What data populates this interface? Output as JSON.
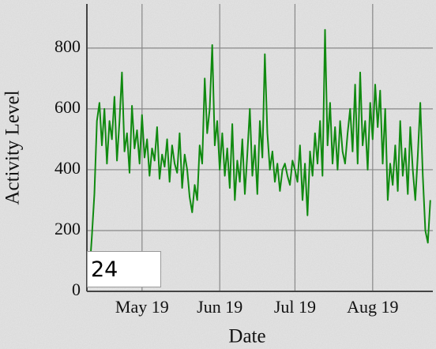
{
  "chart_data": {
    "type": "line",
    "xlabel": "Date",
    "ylabel": "Activity Level",
    "x": [
      100,
      101,
      102,
      103,
      104,
      105,
      106,
      107,
      108,
      109,
      110,
      111,
      112,
      113,
      114,
      115,
      116,
      117,
      118,
      119,
      120,
      121,
      122,
      123,
      124,
      125,
      126,
      127,
      128,
      129,
      130,
      131,
      132,
      133,
      134,
      135,
      136,
      137,
      138,
      139,
      140,
      141,
      142,
      143,
      144,
      145,
      146,
      147,
      148,
      149,
      150,
      151,
      152,
      153,
      154,
      155,
      156,
      157,
      158,
      159,
      160,
      161,
      162,
      163,
      164,
      165,
      166,
      167,
      168,
      169,
      170,
      171,
      172,
      173,
      174,
      175,
      176,
      177,
      178,
      179,
      180,
      181,
      182,
      183,
      184,
      185,
      186,
      187,
      188,
      189,
      190,
      191,
      192,
      193,
      194,
      195,
      196,
      197,
      198,
      199,
      200,
      201,
      202,
      203,
      204,
      205,
      206,
      207,
      208,
      209,
      210,
      211,
      212,
      213,
      214,
      215,
      216,
      217,
      218,
      219,
      220,
      221,
      222,
      223,
      224,
      225,
      226,
      227,
      228,
      229,
      230,
      231,
      232,
      233,
      234,
      235,
      236
    ],
    "series": [
      {
        "color": "#108a10",
        "values": [
          60,
          180,
          320,
          560,
          620,
          480,
          600,
          420,
          560,
          500,
          640,
          430,
          560,
          720,
          460,
          520,
          390,
          610,
          470,
          530,
          420,
          580,
          440,
          500,
          380,
          470,
          430,
          540,
          370,
          450,
          410,
          500,
          360,
          480,
          420,
          390,
          520,
          340,
          450,
          400,
          310,
          260,
          350,
          300,
          480,
          420,
          700,
          520,
          600,
          810,
          480,
          560,
          400,
          520,
          380,
          470,
          340,
          550,
          300,
          430,
          360,
          500,
          320,
          450,
          600,
          380,
          480,
          320,
          560,
          440,
          780,
          520,
          400,
          460,
          360,
          420,
          330,
          400,
          420,
          380,
          350,
          430,
          400,
          360,
          480,
          300,
          420,
          250,
          460,
          380,
          520,
          420,
          560,
          380,
          860,
          480,
          620,
          420,
          540,
          400,
          560,
          460,
          420,
          520,
          600,
          460,
          680,
          420,
          720,
          480,
          560,
          400,
          620,
          500,
          680,
          540,
          660,
          420,
          600,
          300,
          420,
          350,
          480,
          330,
          560,
          380,
          470,
          320,
          540,
          400,
          300,
          450,
          620,
          380,
          200,
          160,
          300
        ]
      }
    ],
    "xlim": [
      99,
      237
    ],
    "xticks": [
      {
        "value": 121,
        "label": "May 19"
      },
      {
        "value": 152,
        "label": "Jun 19"
      },
      {
        "value": 182,
        "label": "Jul 19"
      },
      {
        "value": 213,
        "label": "Aug 19"
      }
    ],
    "ylim": [
      0,
      945
    ],
    "yticks": [
      0,
      200,
      400,
      600,
      800
    ],
    "grid": true
  },
  "input": {
    "text": 24
  }
}
